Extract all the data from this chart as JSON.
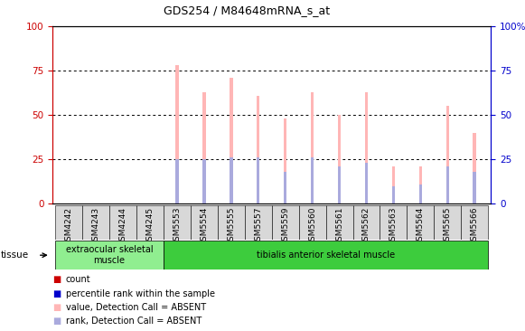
{
  "title": "GDS254 / M84648mRNA_s_at",
  "samples": [
    "GSM4242",
    "GSM4243",
    "GSM4244",
    "GSM4245",
    "GSM5553",
    "GSM5554",
    "GSM5555",
    "GSM5557",
    "GSM5559",
    "GSM5560",
    "GSM5561",
    "GSM5562",
    "GSM5563",
    "GSM5564",
    "GSM5565",
    "GSM5566"
  ],
  "pink_values": [
    0,
    0,
    0,
    0,
    78,
    63,
    71,
    61,
    48,
    63,
    50,
    63,
    21,
    21,
    55,
    40
  ],
  "blue_values": [
    0,
    0,
    0,
    0,
    25,
    25,
    26,
    26,
    18,
    26,
    21,
    23,
    10,
    11,
    21,
    18
  ],
  "tissue_groups": [
    {
      "label": "extraocular skeletal\nmuscle",
      "start": 0,
      "end": 4,
      "color": "#90ee90"
    },
    {
      "label": "tibialis anterior skeletal muscle",
      "start": 4,
      "end": 16,
      "color": "#3dcc3d"
    }
  ],
  "ylim": [
    0,
    100
  ],
  "background_color": "#ffffff",
  "plot_bg": "#ffffff",
  "tick_color_left": "#cc0000",
  "tick_color_right": "#0000cc",
  "bar_width": 0.12,
  "pink_color": "#ffb6b6",
  "blue_color": "#aaaadd",
  "red_color": "#cc0000",
  "dark_blue_color": "#0000cc",
  "xticklabel_bg": "#d8d8d8",
  "legend_items": [
    {
      "color": "#cc0000",
      "label": "count"
    },
    {
      "color": "#0000cc",
      "label": "percentile rank within the sample"
    },
    {
      "color": "#ffb6b6",
      "label": "value, Detection Call = ABSENT"
    },
    {
      "color": "#aaaadd",
      "label": "rank, Detection Call = ABSENT"
    }
  ]
}
